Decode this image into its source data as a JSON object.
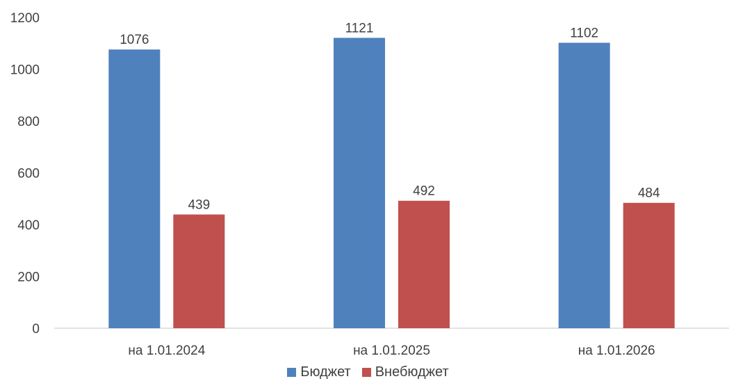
{
  "chart_data": {
    "type": "bar",
    "categories": [
      "на 1.01.2024",
      "на 1.01.2025",
      "на 1.01.2026"
    ],
    "series": [
      {
        "name": "Бюджет",
        "values": [
          1076,
          1121,
          1102
        ],
        "color": "#4F81BD"
      },
      {
        "name": "Внебюджет",
        "values": [
          439,
          492,
          484
        ],
        "color": "#C0504D"
      }
    ],
    "y_ticks": [
      0,
      200,
      400,
      600,
      800,
      1000,
      1200
    ],
    "ylim": [
      0,
      1200
    ],
    "grid": false,
    "legend_position": "bottom",
    "data_labels": true
  }
}
